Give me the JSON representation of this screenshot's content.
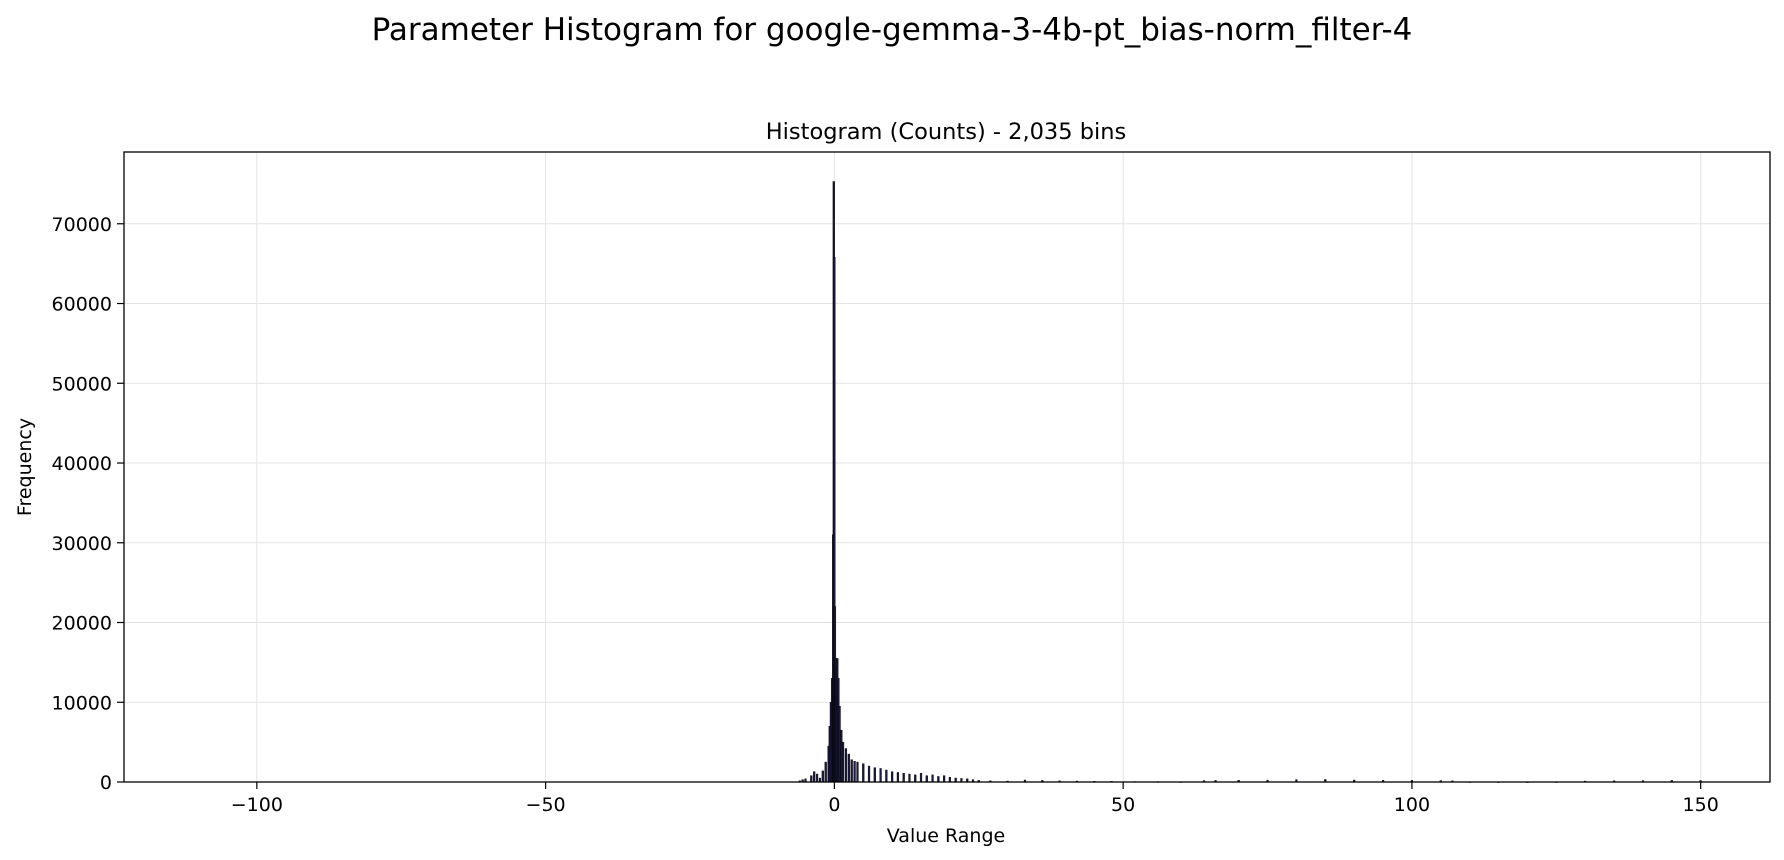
{
  "figure": {
    "suptitle": "Parameter Histogram for google-gemma-3-4b-pt_bias-norm_filter-4"
  },
  "chart_data": {
    "type": "bar",
    "title": "Histogram (Counts) - 2,035 bins",
    "xlabel": "Value Range",
    "ylabel": "Frequency",
    "xlim": [
      -123,
      162
    ],
    "ylim": [
      0,
      79000
    ],
    "xticks": [
      -100,
      -50,
      0,
      50,
      100,
      150
    ],
    "xtick_labels": [
      "−100",
      "−50",
      "0",
      "50",
      "100",
      "150"
    ],
    "yticks": [
      0,
      10000,
      20000,
      30000,
      40000,
      50000,
      60000,
      70000
    ],
    "ytick_labels": [
      "0",
      "10000",
      "20000",
      "30000",
      "40000",
      "50000",
      "60000",
      "70000"
    ],
    "grid": true,
    "bar_color": "#1a1a40",
    "edge_color": "#000000",
    "bins": {
      "x": [
        -6,
        -5.5,
        -5,
        -4,
        -3.5,
        -3,
        -2.5,
        -2,
        -1.5,
        -1,
        -0.8,
        -0.6,
        -0.4,
        -0.2,
        -0.1,
        0,
        0.1,
        0.2,
        0.3,
        0.5,
        0.7,
        0.9,
        1.2,
        1.5,
        2,
        2.5,
        3,
        3.5,
        4,
        5,
        6,
        7,
        8,
        9,
        10,
        11,
        12,
        13,
        14,
        15,
        16,
        17,
        18,
        19,
        20,
        21,
        22,
        23,
        24,
        25,
        27,
        30,
        33,
        36,
        39,
        42,
        45,
        48,
        52,
        56,
        60,
        64,
        66,
        70,
        75,
        80,
        85,
        90,
        95,
        100,
        105,
        107,
        110,
        115,
        120,
        125,
        130,
        135,
        140,
        145,
        150
      ],
      "counts": [
        150,
        300,
        400,
        800,
        1300,
        1000,
        500,
        1400,
        2500,
        4500,
        7000,
        10000,
        13000,
        31000,
        75300,
        65800,
        22000,
        15500,
        14500,
        15500,
        13000,
        9500,
        6500,
        5000,
        4200,
        3500,
        2800,
        2600,
        2500,
        2300,
        2000,
        1800,
        1700,
        1500,
        1300,
        1200,
        1100,
        1000,
        900,
        1100,
        800,
        900,
        700,
        800,
        600,
        500,
        450,
        400,
        300,
        200,
        150,
        120,
        250,
        200,
        150,
        120,
        100,
        80,
        60,
        50,
        40,
        180,
        200,
        220,
        240,
        300,
        320,
        250,
        220,
        200,
        180,
        150,
        40,
        30,
        25,
        30,
        120,
        160,
        180,
        200,
        180
      ]
    }
  }
}
